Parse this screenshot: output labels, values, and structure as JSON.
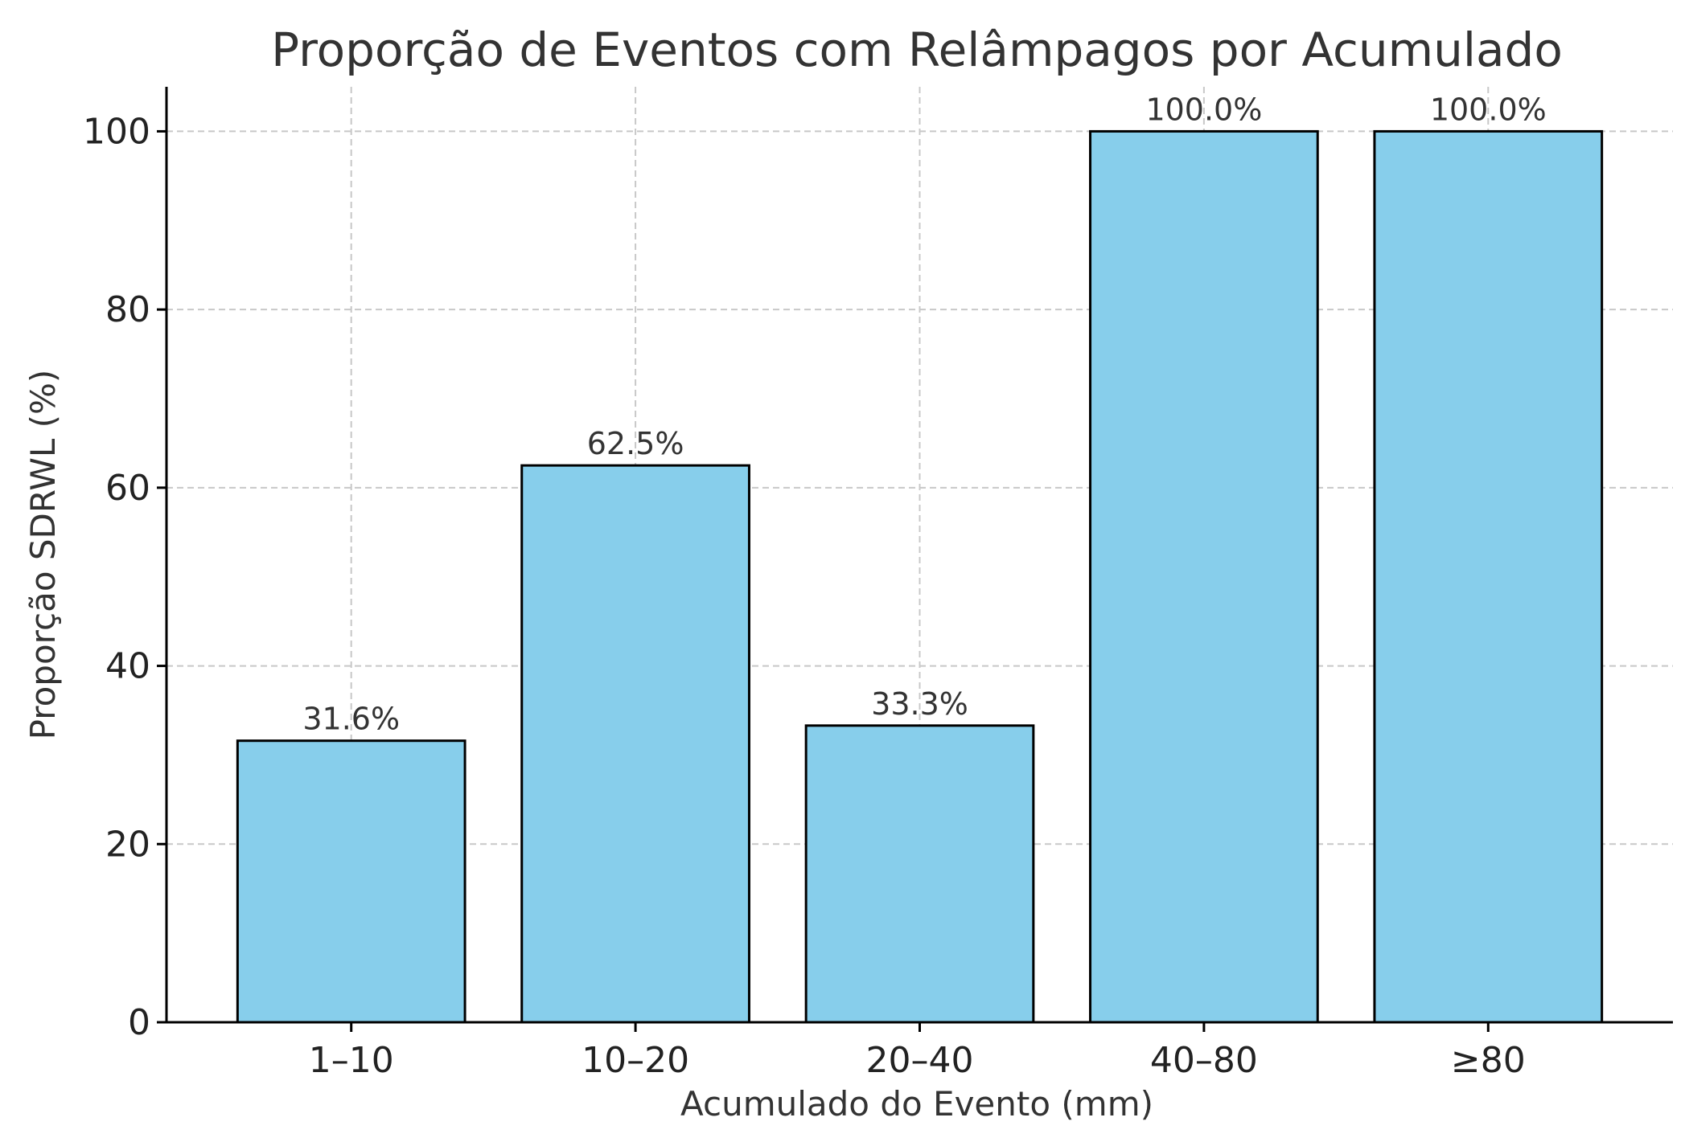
{
  "chart_data": {
    "type": "bar",
    "title": "Proporção de Eventos com Relâmpagos por Acumulado",
    "xlabel": "Acumulado do Evento (mm)",
    "ylabel": "Proporção SDRWL (%)",
    "categories": [
      "1–10",
      "10–20",
      "20–40",
      "40–80",
      "≥80"
    ],
    "values": [
      31.6,
      62.5,
      33.3,
      100.0,
      100.0
    ],
    "value_labels": [
      "31.6%",
      "62.5%",
      "33.3%",
      "100.0%",
      "100.0%"
    ],
    "yticks": [
      0,
      20,
      40,
      60,
      80,
      100
    ],
    "ylim": [
      0,
      105
    ],
    "grid": true,
    "colors": {
      "bar_fill": "#87CEEB",
      "bar_edge": "#000000",
      "grid": "#c8c8c8",
      "axis": "#000000"
    }
  }
}
